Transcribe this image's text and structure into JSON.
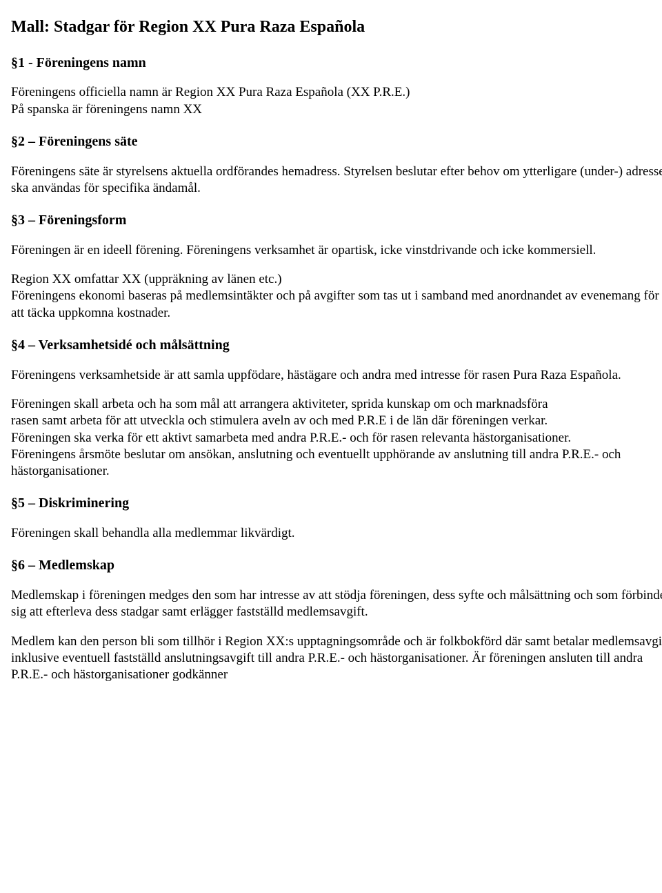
{
  "title": "Mall: Stadgar för Region XX Pura Raza Española",
  "sections": {
    "s1": {
      "heading": "§1 - Föreningens namn",
      "p1": "Föreningens officiella namn är Region XX Pura Raza Española (XX P.R.E.)",
      "p2": "På spanska är föreningens namn XX"
    },
    "s2": {
      "heading": "§2 – Föreningens säte",
      "p1": "Föreningens säte är styrelsens aktuella ordförandes hemadress. Styrelsen beslutar efter behov om ytterligare (under-) adresser ska användas för specifika ändamål."
    },
    "s3": {
      "heading": "§3 – Föreningsform",
      "p1": "Föreningen är en ideell förening. Föreningens verksamhet är opartisk, icke vinstdrivande och icke kommersiell.",
      "p2": "Region XX omfattar XX (uppräkning av länen etc.)",
      "p3": "Föreningens ekonomi baseras på medlemsintäkter och på avgifter som tas ut i samband med anordnandet av evenemang för att täcka uppkomna kostnader."
    },
    "s4": {
      "heading": "§4 – Verksamhetsidé och målsättning",
      "p1": "Föreningens verksamhetside är att samla uppfödare, hästägare och andra med intresse för rasen Pura Raza Española.",
      "p2": "Föreningen skall arbeta och ha som mål att arrangera aktiviteter, sprida kunskap om och marknadsföra",
      "p3": "rasen samt arbeta för att utveckla och stimulera aveln av och med P.R.E i de län där föreningen verkar.",
      "p4": "Föreningen ska verka för ett aktivt samarbeta med andra P.R.E.- och för rasen relevanta hästorganisationer.",
      "p5": "Föreningens årsmöte beslutar om ansökan, anslutning och eventuellt upphörande av anslutning till andra P.R.E.- och hästorganisationer."
    },
    "s5": {
      "heading": "§5 – Diskriminering",
      "p1": "Föreningen skall behandla alla medlemmar likvärdigt."
    },
    "s6": {
      "heading": "§6 – Medlemskap",
      "p1": "Medlemskap i föreningen medges den som har intresse av att stödja föreningen, dess syfte och målsättning och som förbinder sig att efterleva dess stadgar samt erlägger fastställd medlemsavgift.",
      "p2": "Medlem kan den person bli som tillhör i Region XX:s upptagningsområde och är folkbokförd där samt betalar medlemsavgift inklusive eventuell fastställd anslutningsavgift till andra P.R.E.- och hästorganisationer. Är föreningen ansluten till andra P.R.E.- och hästorganisationer godkänner"
    }
  }
}
